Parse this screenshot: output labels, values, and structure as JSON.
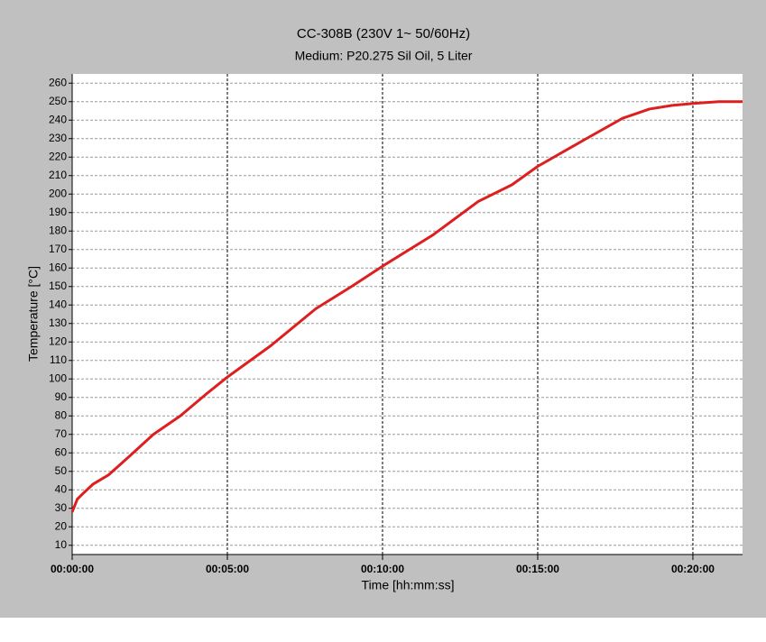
{
  "chart_data": {
    "type": "line",
    "title": "CC-308B (230V 1~ 50/60Hz)",
    "subtitle": "Medium: P20.275 Sil Oil, 5 Liter",
    "x_label": "Time [hh:mm:ss]",
    "y_label": "Temperature [°C]",
    "x": [
      0,
      10,
      21,
      40,
      70,
      110,
      157,
      209,
      260,
      300,
      384,
      471,
      540,
      600,
      698,
      785,
      850,
      900,
      994,
      1064,
      1116,
      1160,
      1200,
      1250,
      1296
    ],
    "values": [
      28,
      35,
      38,
      43,
      48,
      58,
      70,
      80,
      92,
      101,
      118,
      138,
      150,
      161,
      178,
      196,
      205,
      215,
      230,
      241,
      246,
      248,
      249,
      250,
      250
    ],
    "color": "#dd1f1f",
    "xlim": [
      0,
      1296
    ],
    "xticks": [
      {
        "value": 0,
        "label": "00:00:00"
      },
      {
        "value": 300,
        "label": "00:05:00"
      },
      {
        "value": 600,
        "label": "00:10:00"
      },
      {
        "value": 900,
        "label": "00:15:00"
      },
      {
        "value": 1200,
        "label": "00:20:00"
      }
    ],
    "ylim": [
      5,
      265
    ],
    "yticks": [
      10,
      20,
      30,
      40,
      50,
      60,
      70,
      80,
      90,
      100,
      110,
      120,
      130,
      140,
      150,
      160,
      170,
      180,
      190,
      200,
      210,
      220,
      230,
      240,
      250,
      260
    ],
    "grid": true
  }
}
